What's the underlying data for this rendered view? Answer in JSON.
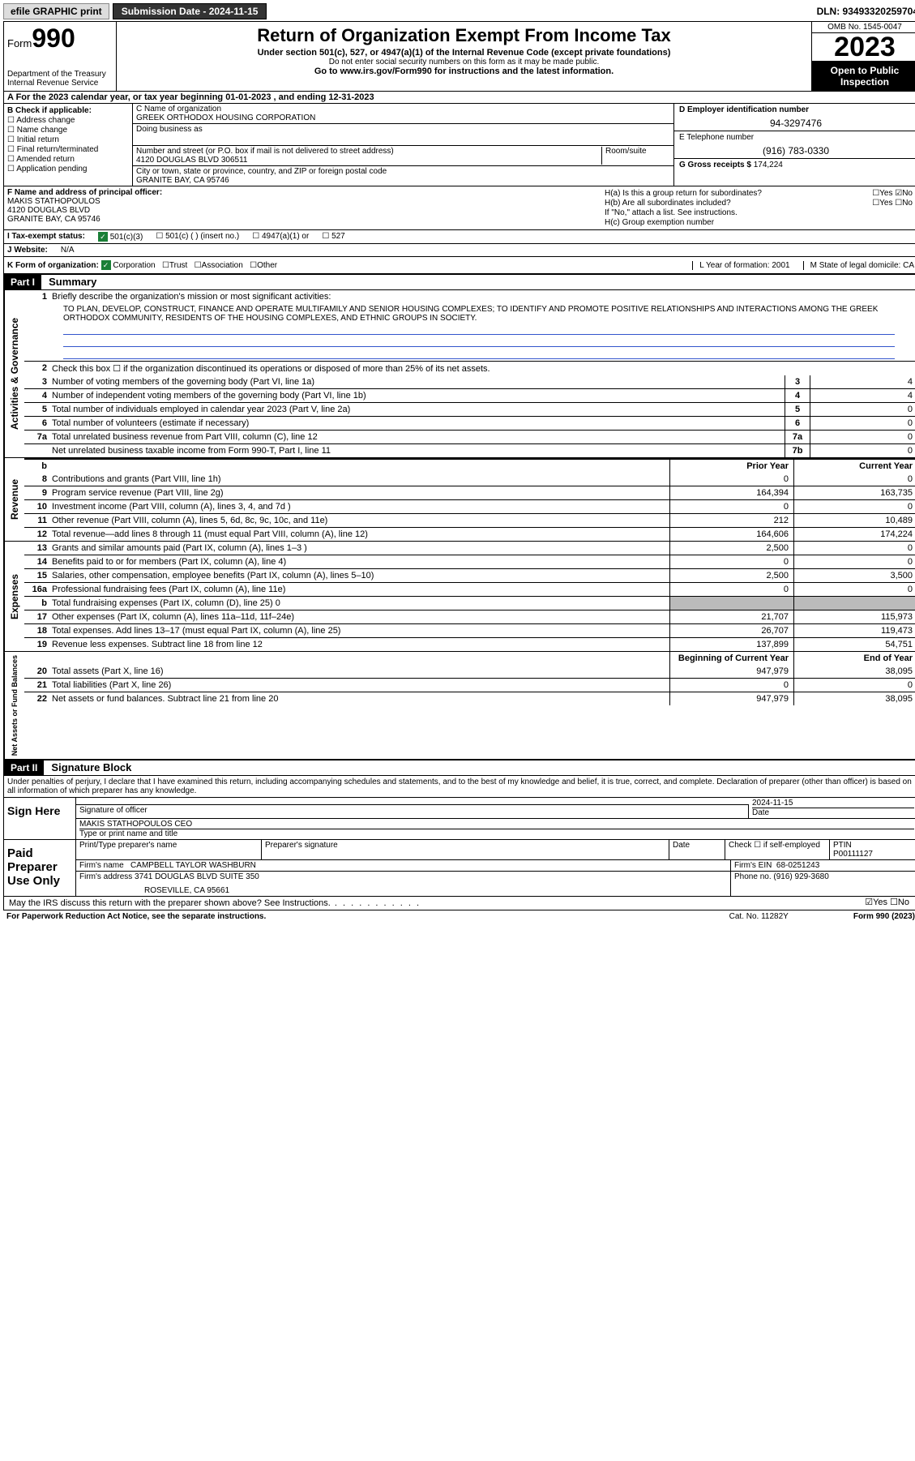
{
  "topbar": {
    "efile": "efile GRAPHIC print",
    "submission_label": "Submission Date - 2024-11-15",
    "dln": "DLN: 93493320259704"
  },
  "header": {
    "form_prefix": "Form",
    "form_number": "990",
    "dept": "Department of the Treasury",
    "irs": "Internal Revenue Service",
    "title": "Return of Organization Exempt From Income Tax",
    "subtitle": "Under section 501(c), 527, or 4947(a)(1) of the Internal Revenue Code (except private foundations)",
    "ssn_note": "Do not enter social security numbers on this form as it may be made public.",
    "goto": "Go to www.irs.gov/Form990 for instructions and the latest information.",
    "omb": "OMB No. 1545-0047",
    "year": "2023",
    "open": "Open to Public Inspection"
  },
  "a_line": "A For the 2023 calendar year, or tax year beginning 01-01-2023   , and ending 12-31-2023",
  "b": {
    "label": "B Check if applicable:",
    "opts": [
      "Address change",
      "Name change",
      "Initial return",
      "Final return/terminated",
      "Amended return",
      "Application pending"
    ]
  },
  "c": {
    "name_label": "C Name of organization",
    "name": "GREEK ORTHODOX HOUSING CORPORATION",
    "dba_label": "Doing business as",
    "dba": "",
    "street_label": "Number and street (or P.O. box if mail is not delivered to street address)",
    "room_label": "Room/suite",
    "street": "4120 DOUGLAS BLVD 306511",
    "city_label": "City or town, state or province, country, and ZIP or foreign postal code",
    "city": "GRANITE BAY, CA  95746"
  },
  "d": {
    "label": "D Employer identification number",
    "value": "94-3297476"
  },
  "e": {
    "label": "E Telephone number",
    "value": "(916) 783-0330"
  },
  "g": {
    "label": "G Gross receipts $",
    "value": "174,224"
  },
  "f": {
    "label": "F Name and address of principal officer:",
    "name": "MAKIS STATHOPOULOS",
    "street": "4120 DOUGLAS BLVD",
    "city": "GRANITE BAY, CA  95746"
  },
  "h": {
    "a": "H(a)  Is this a group return for subordinates?",
    "a_ans": "☐Yes ☑No",
    "b": "H(b)  Are all subordinates included?",
    "b_ans": "☐Yes ☐No",
    "note": "If \"No,\" attach a list. See instructions.",
    "c": "H(c)  Group exemption number"
  },
  "i": {
    "label": "I   Tax-exempt status:",
    "c3": "501(c)(3)",
    "c": "501(c) (  ) (insert no.)",
    "a1": "4947(a)(1) or",
    "527": "527"
  },
  "j": {
    "label": "J   Website:",
    "value": "N/A"
  },
  "k": {
    "label": "K Form of organization:",
    "corp": "Corporation",
    "trust": "Trust",
    "assoc": "Association",
    "other": "Other",
    "l": "L Year of formation: 2001",
    "m": "M State of legal domicile: CA"
  },
  "part1": {
    "hdr": "Part I",
    "title": "Summary",
    "q1": "Briefly describe the organization's mission or most significant activities:",
    "mission": "TO PLAN, DEVELOP, CONSTRUCT, FINANCE AND OPERATE MULTIFAMILY AND SENIOR HOUSING COMPLEXES; TO IDENTIFY AND PROMOTE POSITIVE RELATIONSHIPS AND INTERACTIONS AMONG THE GREEK ORTHODOX COMMUNITY, RESIDENTS OF THE HOUSING COMPLEXES, AND ETHNIC GROUPS IN SOCIETY.",
    "q2": "Check this box ☐ if the organization discontinued its operations or disposed of more than 25% of its net assets.",
    "governance": [
      {
        "n": "3",
        "t": "Number of voting members of the governing body (Part VI, line 1a)",
        "b": "3",
        "v": "4"
      },
      {
        "n": "4",
        "t": "Number of independent voting members of the governing body (Part VI, line 1b)",
        "b": "4",
        "v": "4"
      },
      {
        "n": "5",
        "t": "Total number of individuals employed in calendar year 2023 (Part V, line 2a)",
        "b": "5",
        "v": "0"
      },
      {
        "n": "6",
        "t": "Total number of volunteers (estimate if necessary)",
        "b": "6",
        "v": "0"
      },
      {
        "n": "7a",
        "t": "Total unrelated business revenue from Part VIII, column (C), line 12",
        "b": "7a",
        "v": "0"
      },
      {
        "n": "",
        "t": "Net unrelated business taxable income from Form 990-T, Part I, line 11",
        "b": "7b",
        "v": "0"
      }
    ],
    "prior_hdr": "Prior Year",
    "current_hdr": "Current Year",
    "revenue": [
      {
        "n": "8",
        "t": "Contributions and grants (Part VIII, line 1h)",
        "p": "0",
        "c": "0"
      },
      {
        "n": "9",
        "t": "Program service revenue (Part VIII, line 2g)",
        "p": "164,394",
        "c": "163,735"
      },
      {
        "n": "10",
        "t": "Investment income (Part VIII, column (A), lines 3, 4, and 7d )",
        "p": "0",
        "c": "0"
      },
      {
        "n": "11",
        "t": "Other revenue (Part VIII, column (A), lines 5, 6d, 8c, 9c, 10c, and 11e)",
        "p": "212",
        "c": "10,489"
      },
      {
        "n": "12",
        "t": "Total revenue—add lines 8 through 11 (must equal Part VIII, column (A), line 12)",
        "p": "164,606",
        "c": "174,224"
      }
    ],
    "expenses": [
      {
        "n": "13",
        "t": "Grants and similar amounts paid (Part IX, column (A), lines 1–3 )",
        "p": "2,500",
        "c": "0"
      },
      {
        "n": "14",
        "t": "Benefits paid to or for members (Part IX, column (A), line 4)",
        "p": "0",
        "c": "0"
      },
      {
        "n": "15",
        "t": "Salaries, other compensation, employee benefits (Part IX, column (A), lines 5–10)",
        "p": "2,500",
        "c": "3,500"
      },
      {
        "n": "16a",
        "t": "Professional fundraising fees (Part IX, column (A), line 11e)",
        "p": "0",
        "c": "0"
      },
      {
        "n": "b",
        "t": "Total fundraising expenses (Part IX, column (D), line 25) 0",
        "p": "",
        "c": "",
        "gray": true
      },
      {
        "n": "17",
        "t": "Other expenses (Part IX, column (A), lines 11a–11d, 11f–24e)",
        "p": "21,707",
        "c": "115,973"
      },
      {
        "n": "18",
        "t": "Total expenses. Add lines 13–17 (must equal Part IX, column (A), line 25)",
        "p": "26,707",
        "c": "119,473"
      },
      {
        "n": "19",
        "t": "Revenue less expenses. Subtract line 18 from line 12",
        "p": "137,899",
        "c": "54,751"
      }
    ],
    "begin_hdr": "Beginning of Current Year",
    "end_hdr": "End of Year",
    "netassets": [
      {
        "n": "20",
        "t": "Total assets (Part X, line 16)",
        "p": "947,979",
        "c": "38,095"
      },
      {
        "n": "21",
        "t": "Total liabilities (Part X, line 26)",
        "p": "0",
        "c": "0"
      },
      {
        "n": "22",
        "t": "Net assets or fund balances. Subtract line 21 from line 20",
        "p": "947,979",
        "c": "38,095"
      }
    ],
    "vlabels": {
      "gov": "Activities & Governance",
      "rev": "Revenue",
      "exp": "Expenses",
      "net": "Net Assets or Fund Balances"
    }
  },
  "part2": {
    "hdr": "Part II",
    "title": "Signature Block",
    "perjury": "Under penalties of perjury, I declare that I have examined this return, including accompanying schedules and statements, and to the best of my knowledge and belief, it is true, correct, and complete. Declaration of preparer (other than officer) is based on all information of which preparer has any knowledge.",
    "sign_here": "Sign Here",
    "sig_officer_label": "Signature of officer",
    "sig_date_label": "Date",
    "sig_date": "2024-11-15",
    "officer": "MAKIS STATHOPOULOS  CEO",
    "type_label": "Type or print name and title",
    "paid": "Paid Preparer Use Only",
    "prep_name_label": "Print/Type preparer's name",
    "prep_sig_label": "Preparer's signature",
    "prep_date_label": "Date",
    "self_emp": "Check ☐ if self-employed",
    "ptin_label": "PTIN",
    "ptin": "P00111127",
    "firm_name_label": "Firm's name",
    "firm_name": "CAMPBELL TAYLOR WASHBURN",
    "firm_ein_label": "Firm's EIN",
    "firm_ein": "68-0251243",
    "firm_addr_label": "Firm's address",
    "firm_addr1": "3741 DOUGLAS BLVD SUITE 350",
    "firm_addr2": "ROSEVILLE, CA  95661",
    "phone_label": "Phone no.",
    "phone": "(916) 929-3680",
    "discuss": "May the IRS discuss this return with the preparer shown above? See Instructions.",
    "discuss_ans": "☑Yes ☐No"
  },
  "footer": {
    "left": "For Paperwork Reduction Act Notice, see the separate instructions.",
    "mid": "Cat. No. 11282Y",
    "right": "Form 990 (2023)"
  }
}
